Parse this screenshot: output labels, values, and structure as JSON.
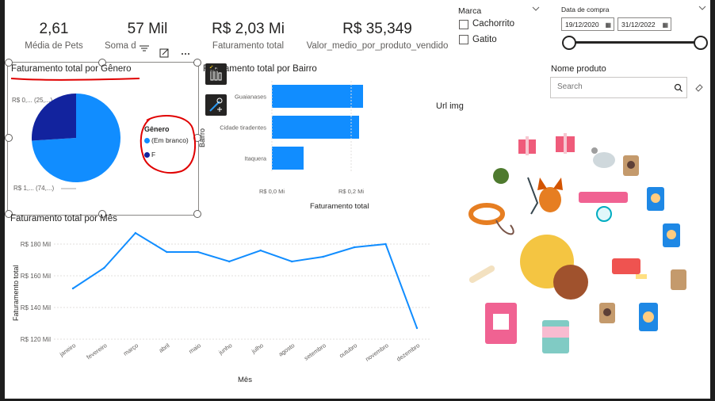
{
  "kpis": [
    {
      "value": "2,61",
      "label": "Média de Pets"
    },
    {
      "value": "57 Mil",
      "label": "Soma d"
    },
    {
      "value": "R$ 2,03 Mi",
      "label": "Faturamento total"
    },
    {
      "value": "R$ 35,349",
      "label": "Valor_medio_por_produto_vendido"
    }
  ],
  "marca_slicer": {
    "title": "Marca",
    "options": [
      "Cachorrito",
      "Gatito"
    ]
  },
  "date_slicer": {
    "title": "Data de compra",
    "start": "19/12/2020",
    "end": "31/12/2022"
  },
  "produto_slicer": {
    "title": "Nome produto",
    "placeholder": "Search"
  },
  "url_img_label": "Url img",
  "colors": {
    "accent": "#118dff",
    "dark_series": "#12239e",
    "annotation_red": "#e00000"
  },
  "pie_visual": {
    "title": "Faturamento total por Gênero",
    "label_top": "R$ 0,... (25,...)",
    "label_bottom": "R$ 1,... (74,...)",
    "legend_title": "Gênero",
    "legend_items": [
      "(Em branco)",
      "F"
    ]
  },
  "bar_visual": {
    "title": "Faturamento total por Bairro",
    "y_title": "Bairro",
    "x_title": "Faturamento total",
    "x_ticks": [
      "R$ 0,0 Mi",
      "R$ 0,2 Mi"
    ]
  },
  "line_visual": {
    "title": "Faturamento total por Mês",
    "y_title": "Faturamento total",
    "x_title": "Mês",
    "y_ticks": [
      "R$ 120 Mil",
      "R$ 140 Mil",
      "R$ 160 Mil",
      "R$ 180 Mil"
    ]
  },
  "chart_data": [
    {
      "type": "pie",
      "title": "Faturamento total por Gênero",
      "categories": [
        "(Em branco)",
        "F"
      ],
      "values": [
        74,
        26
      ],
      "unit": "%"
    },
    {
      "type": "bar",
      "title": "Faturamento total por Bairro",
      "orientation": "horizontal",
      "categories": [
        "Guaianases",
        "Cidade tiradentes",
        "Itaquera"
      ],
      "values": [
        0.23,
        0.22,
        0.08
      ],
      "xlabel": "Faturamento total",
      "ylabel": "Bairro",
      "xlim": [
        0,
        0.25
      ]
    },
    {
      "type": "line",
      "title": "Faturamento total por Mês",
      "categories": [
        "janeiro",
        "fevereiro",
        "março",
        "abril",
        "maio",
        "junho",
        "julho",
        "agosto",
        "setembro",
        "outubro",
        "novembro",
        "dezembro"
      ],
      "values": [
        152,
        165,
        187,
        175,
        175,
        169,
        176,
        169,
        172,
        178,
        180,
        127
      ],
      "xlabel": "Mês",
      "ylabel": "Faturamento total",
      "ylim": [
        120,
        190
      ]
    }
  ]
}
